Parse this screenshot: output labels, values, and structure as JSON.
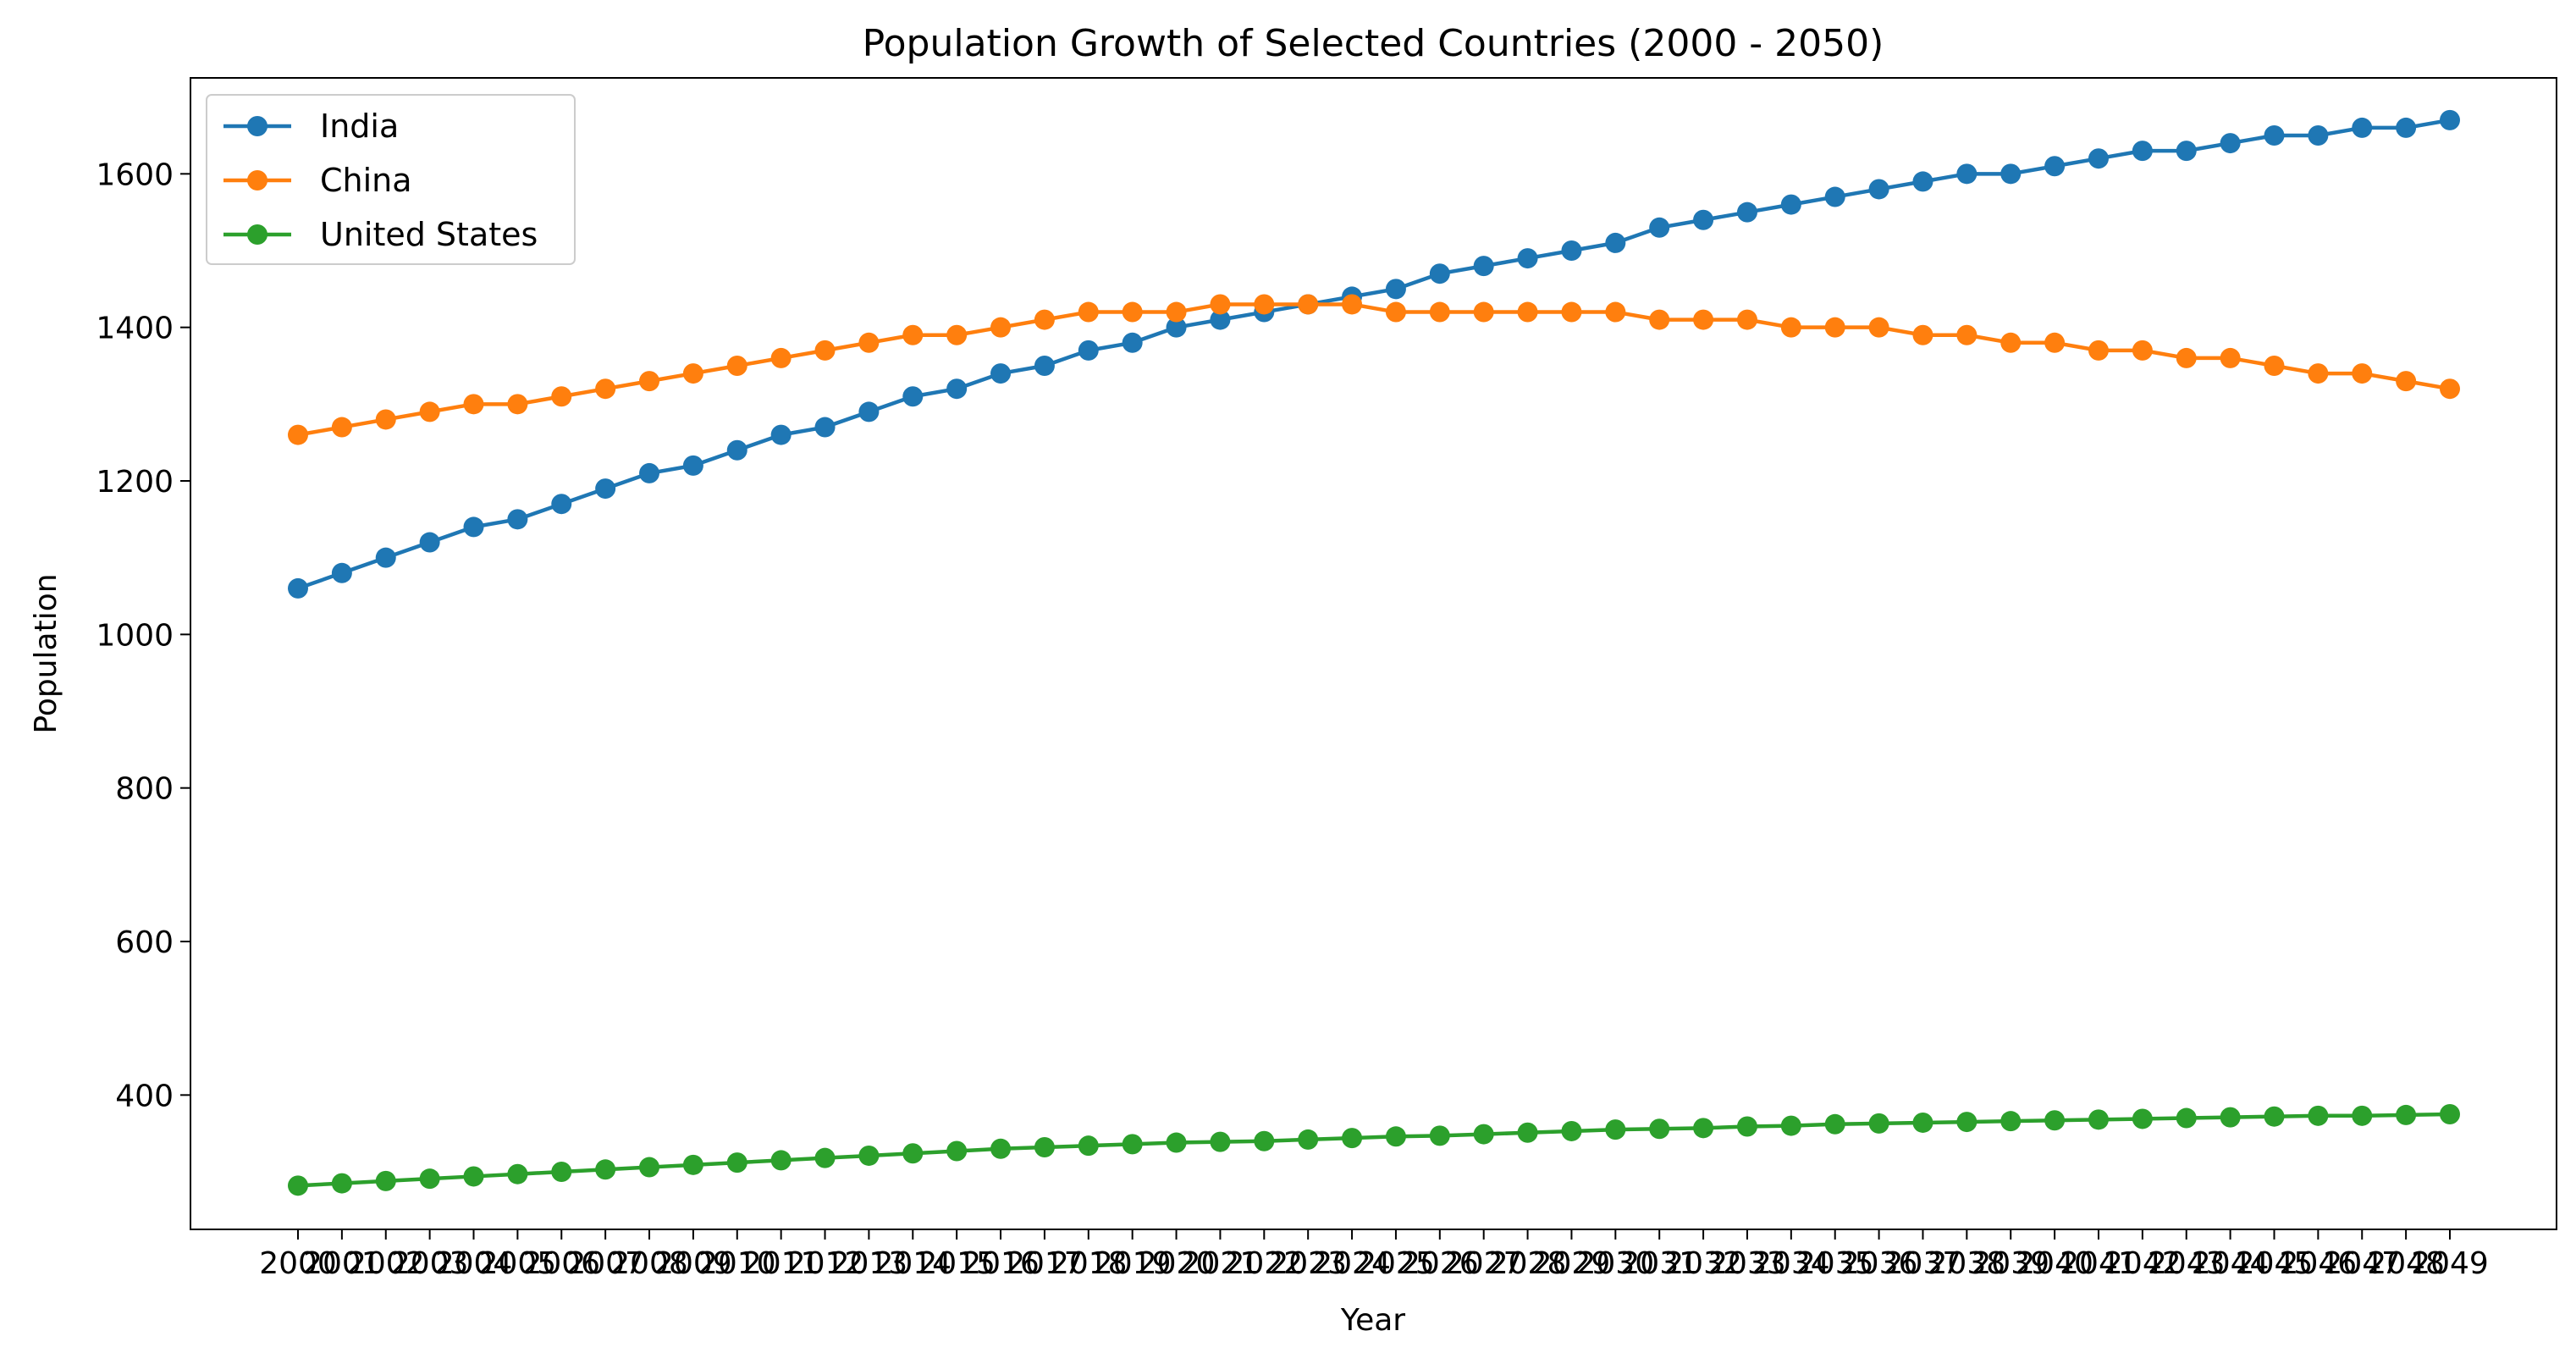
{
  "chart_data": {
    "type": "line",
    "title": "Population Growth of Selected Countries (2000 - 2050)",
    "xlabel": "Year",
    "ylabel": "Population",
    "x": [
      "2000",
      "2001",
      "2002",
      "2003",
      "2004",
      "2005",
      "2006",
      "2007",
      "2008",
      "2009",
      "2010",
      "2011",
      "2012",
      "2013",
      "2014",
      "2015",
      "2016",
      "2017",
      "2018",
      "2019",
      "2020",
      "2021",
      "2022",
      "2023",
      "2024",
      "2025",
      "2026",
      "2027",
      "2028",
      "2029",
      "2030",
      "2031",
      "2032",
      "2033",
      "2034",
      "2035",
      "2036",
      "2037",
      "2038",
      "2039",
      "2040",
      "2041",
      "2042",
      "2043",
      "2044",
      "2045",
      "2046",
      "2047",
      "2048",
      "2049"
    ],
    "ylim": [
      225,
      1725
    ],
    "yticks": [
      400,
      600,
      800,
      1000,
      1200,
      1400,
      1600
    ],
    "grid": false,
    "legend_position": "top-left",
    "series": [
      {
        "name": "India",
        "color": "#1f77b4",
        "marker": "circle",
        "values": [
          1060,
          1080,
          1100,
          1120,
          1140,
          1150,
          1170,
          1190,
          1210,
          1220,
          1240,
          1260,
          1270,
          1290,
          1310,
          1320,
          1340,
          1350,
          1370,
          1380,
          1400,
          1410,
          1420,
          1430,
          1440,
          1450,
          1470,
          1480,
          1490,
          1500,
          1510,
          1530,
          1540,
          1550,
          1560,
          1570,
          1580,
          1590,
          1600,
          1600,
          1610,
          1620,
          1630,
          1630,
          1640,
          1650,
          1650,
          1660,
          1660,
          1670
        ]
      },
      {
        "name": "China",
        "color": "#ff7f0e",
        "marker": "circle",
        "values": [
          1260,
          1270,
          1280,
          1290,
          1300,
          1300,
          1310,
          1320,
          1330,
          1340,
          1350,
          1360,
          1370,
          1380,
          1390,
          1390,
          1400,
          1410,
          1420,
          1420,
          1420,
          1430,
          1430,
          1430,
          1430,
          1420,
          1420,
          1420,
          1420,
          1420,
          1420,
          1410,
          1410,
          1410,
          1400,
          1400,
          1400,
          1390,
          1390,
          1380,
          1380,
          1370,
          1370,
          1360,
          1360,
          1350,
          1340,
          1340,
          1330,
          1320
        ]
      },
      {
        "name": "United States",
        "color": "#2ca02c",
        "marker": "circle",
        "values": [
          282,
          285,
          288,
          291,
          294,
          297,
          300,
          303,
          306,
          309,
          312,
          315,
          318,
          321,
          324,
          327,
          330,
          332,
          334,
          336,
          338,
          339,
          340,
          342,
          344,
          346,
          347,
          349,
          351,
          353,
          355,
          356,
          357,
          359,
          360,
          362,
          363,
          364,
          365,
          366,
          367,
          368,
          369,
          370,
          371,
          372,
          373,
          373,
          374,
          375
        ]
      }
    ]
  }
}
